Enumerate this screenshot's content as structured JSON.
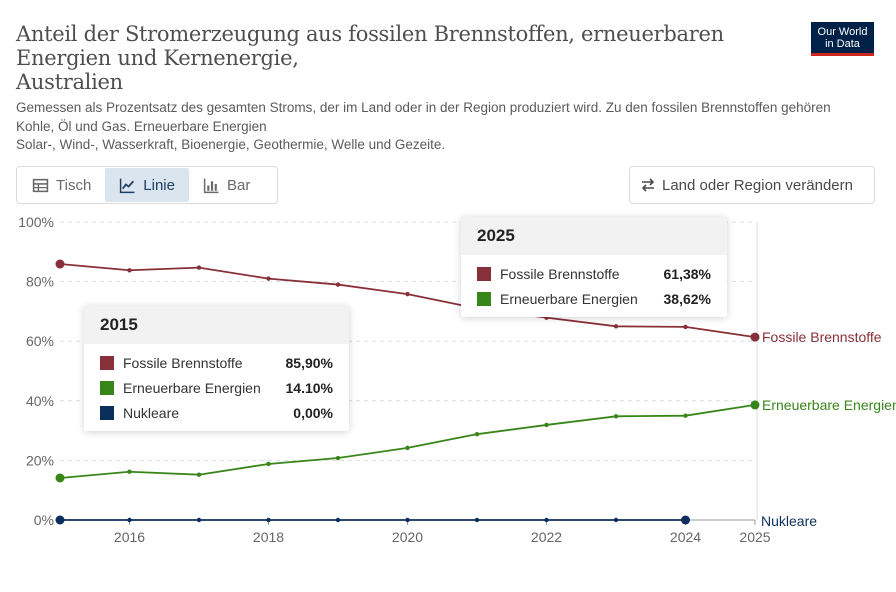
{
  "header": {
    "title": "Anteil der Stromerzeugung aus fossilen Brennstoffen, erneuerbaren Energien und Kernenergie,\nAustralien",
    "subtitle": "Gemessen als Prozentsatz des gesamten Stroms, der im Land oder in der Region produziert wird. Zu den fossilen Brennstoffen gehören Kohle, Öl und Gas. Erneuerbare Energien\nSolar-, Wind-, Wasserkraft, Bioenergie, Geothermie, Welle und Gezeite.",
    "logo_text": "Our World\nin Data"
  },
  "tabs": [
    {
      "label": "Tisch",
      "icon": "table-icon",
      "active": false
    },
    {
      "label": "Linie",
      "icon": "line-chart-icon",
      "active": true
    },
    {
      "label": "Bar",
      "icon": "bar-chart-icon",
      "active": false
    }
  ],
  "change_button": {
    "label": "Land oder Region verändern",
    "icon": "swap-arrows-icon"
  },
  "chart_data": {
    "type": "line",
    "x": [
      2015,
      2016,
      2017,
      2018,
      2019,
      2020,
      2021,
      2022,
      2023,
      2024,
      2025
    ],
    "xticks": [
      2016,
      2018,
      2020,
      2022,
      2024,
      2025
    ],
    "yticks": [
      "0%",
      "20%",
      "40%",
      "60%",
      "80%",
      "100%"
    ],
    "ylim": [
      0,
      100
    ],
    "grid": true,
    "series": [
      {
        "name": "Fossile Brennstoffe",
        "color": "#883039",
        "values": [
          85.9,
          83.8,
          84.7,
          81.0,
          79.0,
          75.8,
          71.0,
          67.9,
          65.0,
          64.8,
          61.38
        ]
      },
      {
        "name": "Erneuerbare Energien",
        "color": "#38861a",
        "values": [
          14.1,
          16.2,
          15.2,
          18.8,
          20.8,
          24.2,
          28.8,
          31.9,
          34.8,
          35.0,
          38.62
        ]
      },
      {
        "name": "Nukleare",
        "color": "#0c2e5c",
        "values": [
          0,
          0,
          0,
          0,
          0,
          0,
          0,
          0,
          0,
          0,
          null
        ]
      }
    ]
  },
  "tooltips": [
    {
      "year": "2015",
      "rows": [
        {
          "name": "Fossile Brennstoffe",
          "value": "85,90%",
          "color": "#883039"
        },
        {
          "name": "Erneuerbare Energien",
          "value": "14.10%",
          "color": "#38861a"
        },
        {
          "name": "Nukleare",
          "value": "0,00%",
          "color": "#0c2e5c"
        }
      ]
    },
    {
      "year": "2025",
      "rows": [
        {
          "name": "Fossile Brennstoffe",
          "value": "61,38%",
          "color": "#883039"
        },
        {
          "name": "Erneuerbare Energien",
          "value": "38,62%",
          "color": "#38861a"
        }
      ]
    }
  ]
}
